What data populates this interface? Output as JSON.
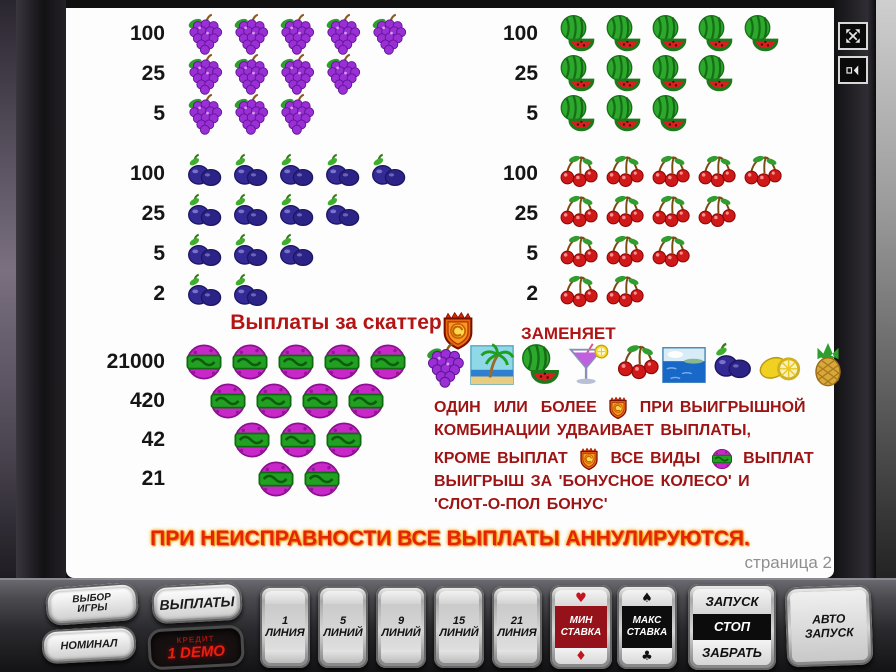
{
  "colors": {
    "red_text": "#9e1414",
    "title_red": "#b31414",
    "warning_red": "#e3230a",
    "warning_glow": "#ff9c00",
    "page_gray": "#8f8f8f",
    "min_bet_bg": "#96121a",
    "max_bet_bg": "#0d0d0d"
  },
  "screen": {
    "groups": {
      "grapes": {
        "symbol": "grapes",
        "rows": [
          {
            "value": "100",
            "count": 5
          },
          {
            "value": "25",
            "count": 4
          },
          {
            "value": "5",
            "count": 3
          }
        ]
      },
      "watermelon": {
        "symbol": "melon",
        "rows": [
          {
            "value": "100",
            "count": 5
          },
          {
            "value": "25",
            "count": 4
          },
          {
            "value": "5",
            "count": 3
          }
        ]
      },
      "plum": {
        "symbol": "plum",
        "rows": [
          {
            "value": "100",
            "count": 5
          },
          {
            "value": "25",
            "count": 4
          },
          {
            "value": "5",
            "count": 3
          },
          {
            "value": "2",
            "count": 2
          }
        ]
      },
      "cherry": {
        "symbol": "cherry",
        "rows": [
          {
            "value": "100",
            "count": 5
          },
          {
            "value": "25",
            "count": 4
          },
          {
            "value": "5",
            "count": 3
          },
          {
            "value": "2",
            "count": 2
          }
        ]
      },
      "scatter": {
        "symbol": "scatter",
        "title": "Выплаты за скаттер",
        "rows": [
          {
            "value": "21000",
            "count": 5
          },
          {
            "value": "420",
            "count": 4
          },
          {
            "value": "42",
            "count": 3
          },
          {
            "value": "21",
            "count": 2
          }
        ]
      }
    },
    "wild_section": {
      "replaces_label": "ЗАМЕНЯЕТ",
      "wild_symbol": "wild",
      "symbols": [
        "grapes",
        "palm",
        "melon",
        "cocktail",
        "cherry",
        "sea",
        "plum",
        "lemon",
        "pineapple"
      ],
      "rule_lines": [
        [
          {
            "text": "ОДИН  ИЛИ  БОЛЕЕ "
          },
          {
            "icon": "wild"
          },
          {
            "text": " ПРИ ВЫИГРЫШНОЙ"
          }
        ],
        [
          {
            "text": "КОМБИНАЦИИ УДВАИВАЕТ ВЫПЛАТЫ,"
          }
        ],
        [
          {
            "text": "КРОМЕ ВЫПЛАТ "
          },
          {
            "icon": "wild"
          },
          {
            "text": " ВСЕ ВИДЫ "
          },
          {
            "icon": "scatter"
          },
          {
            "text": " ВЫПЛАТ"
          }
        ],
        [
          {
            "text": "ВЫИГРЫШ ЗА 'БОНУСНОЕ КОЛЕСО' И"
          }
        ],
        [
          {
            "text": "'СЛОТ-О-ПОЛ БОНУС'"
          }
        ]
      ]
    },
    "warning": "ПРИ НЕИСПРАВНОСТИ ВСЕ ВЫПЛАТЫ АННУЛИРУЮТСЯ.",
    "page_label": "страница 2"
  },
  "panel": {
    "game_select": {
      "line1": "ВЫБОР",
      "line2": "ИГРЫ"
    },
    "denomination": {
      "line1": "НОМИНАЛ"
    },
    "payouts": {
      "line1": "ВЫПЛАТЫ"
    },
    "credit_display": {
      "line1": "КРЕДИТ",
      "line2": "1 DEMO"
    },
    "line_buttons": [
      {
        "line1": "1",
        "line2": "ЛИНИЯ"
      },
      {
        "line1": "5",
        "line2": "ЛИНИЙ"
      },
      {
        "line1": "9",
        "line2": "ЛИНИЙ"
      },
      {
        "line1": "15",
        "line2": "ЛИНИЙ"
      },
      {
        "line1": "21",
        "line2": "ЛИНИЯ"
      }
    ],
    "min_bet": {
      "top_suit": "♥",
      "line1": "МИН",
      "line2": "СТАВКА",
      "bottom_suit": "♦"
    },
    "max_bet": {
      "top_suit": "♠",
      "line1": "МАКС",
      "line2": "СТАВКА",
      "bottom_suit": "♣"
    },
    "start_button": {
      "line1": "ЗАПУСК",
      "line2": "СТОП",
      "line3": "ЗАБРАТЬ"
    },
    "auto_start": {
      "line1": "АВТО",
      "line2": "ЗАПУСК"
    }
  }
}
